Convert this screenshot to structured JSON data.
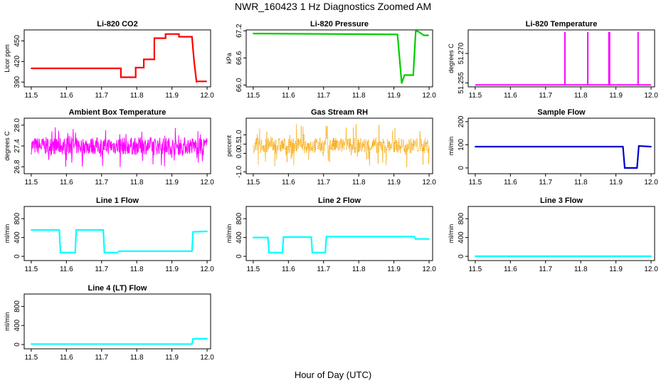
{
  "figure": {
    "title": "NWR_160423  1 Hz Diagnostics Zoomed AM",
    "xlabel": "Hour of Day (UTC)"
  },
  "chart_data": [
    {
      "type": "line",
      "title": "Li-820 CO2",
      "ylabel": "Licor ppm",
      "color": "#ff0000",
      "xlim": [
        11.48,
        12.01
      ],
      "ylim": [
        383,
        466
      ],
      "xticks": [
        "11.5",
        "11.6",
        "11.7",
        "11.8",
        "11.9",
        "12.0"
      ],
      "yticks": [
        390,
        420,
        450
      ],
      "series": [
        {
          "x": [
            11.5,
            11.755,
            11.755,
            11.797,
            11.797,
            11.82,
            11.82,
            11.85,
            11.85,
            11.882,
            11.882,
            11.92,
            11.92,
            11.957,
            11.963,
            11.97,
            11.97,
            11.998
          ],
          "y": [
            410,
            410,
            397,
            397,
            411,
            411,
            423,
            423,
            454,
            454,
            460,
            460,
            456,
            456,
            420,
            390,
            391,
            391
          ]
        }
      ]
    },
    {
      "type": "line",
      "title": "Li-820 Pressure",
      "ylabel": "kPa",
      "color": "#00cc00",
      "xlim": [
        11.48,
        12.01
      ],
      "ylim": [
        65.96,
        67.22
      ],
      "xticks": [
        "11.5",
        "11.6",
        "11.7",
        "11.8",
        "11.9",
        "12.0"
      ],
      "yticks": [
        66.0,
        66.6,
        67.2
      ],
      "series": [
        {
          "x": [
            11.5,
            11.91,
            11.916,
            11.922,
            11.93,
            11.955,
            11.962,
            11.97,
            11.985,
            11.998
          ],
          "y": [
            67.14,
            67.12,
            66.6,
            66.04,
            66.22,
            66.22,
            67.2,
            67.18,
            67.1,
            67.1
          ]
        }
      ]
    },
    {
      "type": "line",
      "title": "Li-820 Temperature",
      "ylabel": "degrees C",
      "color": "#ff00ff",
      "xlim": [
        11.48,
        12.01
      ],
      "ylim": [
        51.253,
        51.282
      ],
      "xticks": [
        "11.5",
        "11.6",
        "11.7",
        "11.8",
        "11.9",
        "12.0"
      ],
      "yticks": [
        51.255,
        51.27
      ],
      "baseline": 51.254,
      "spikes": [
        11.755,
        11.82,
        11.88,
        11.882,
        11.963
      ]
    },
    {
      "type": "line",
      "title": "Ambient Box Temperature",
      "ylabel": "degrees C",
      "color": "#ff00ff",
      "xlim": [
        11.48,
        12.01
      ],
      "ylim": [
        26.6,
        28.2
      ],
      "xticks": [
        "11.5",
        "11.6",
        "11.7",
        "11.8",
        "11.9",
        "12.0"
      ],
      "yticks": [
        26.8,
        27.4,
        28.0
      ],
      "noise": {
        "mean": 27.4,
        "low": 27.15,
        "high": 27.65,
        "minDip": 26.75,
        "maxSpike": 27.95
      }
    },
    {
      "type": "scatter",
      "title": "Gas Stream RH",
      "ylabel": "percent",
      "color": "#ffaa00",
      "xlim": [
        11.48,
        12.01
      ],
      "ylim": [
        -1.1,
        1.9
      ],
      "xticks": [
        "11.5",
        "11.6",
        "11.7",
        "11.8",
        "11.9",
        "12.0"
      ],
      "yticks": [
        -1.0,
        0.0,
        0.5,
        1.0
      ],
      "noise": {
        "mean": 0.4,
        "low": 0.0,
        "high": 0.85,
        "minDip": -0.8,
        "maxSpike": 1.6
      }
    },
    {
      "type": "line",
      "title": "Sample Flow",
      "ylabel": "ml/min",
      "color": "#0000cc",
      "xlim": [
        11.48,
        12.01
      ],
      "ylim": [
        -25,
        215
      ],
      "xticks": [
        "11.5",
        "11.6",
        "11.7",
        "11.8",
        "11.9",
        "12.0"
      ],
      "yticks": [
        0,
        100,
        200
      ],
      "series": [
        {
          "x": [
            11.5,
            11.92,
            11.925,
            11.96,
            11.965,
            12.0
          ],
          "y": [
            92,
            92,
            0,
            0,
            95,
            92
          ]
        }
      ]
    },
    {
      "type": "line",
      "title": "Line 1 Flow",
      "ylabel": "ml/min",
      "color": "#00ffff",
      "xlim": [
        11.48,
        12.01
      ],
      "ylim": [
        -90,
        1060
      ],
      "xticks": [
        "11.5",
        "11.6",
        "11.7",
        "11.8",
        "11.9",
        "12.0"
      ],
      "yticks": [
        0,
        400,
        800
      ],
      "series": [
        {
          "x": [
            11.5,
            11.58,
            11.583,
            11.625,
            11.628,
            11.705,
            11.708,
            11.745,
            11.75,
            11.957,
            11.96,
            12.0
          ],
          "y": [
            560,
            560,
            80,
            80,
            560,
            560,
            80,
            80,
            110,
            110,
            520,
            530
          ]
        }
      ]
    },
    {
      "type": "line",
      "title": "Line 2 Flow",
      "ylabel": "ml/min",
      "color": "#00ffff",
      "xlim": [
        11.48,
        12.01
      ],
      "ylim": [
        -90,
        1060
      ],
      "xticks": [
        "11.5",
        "11.6",
        "11.7",
        "11.8",
        "11.9",
        "12.0"
      ],
      "yticks": [
        0,
        400,
        800
      ],
      "series": [
        {
          "x": [
            11.5,
            11.542,
            11.545,
            11.583,
            11.586,
            11.665,
            11.668,
            11.705,
            11.708,
            11.958,
            11.961,
            12.0
          ],
          "y": [
            400,
            400,
            80,
            80,
            410,
            410,
            80,
            80,
            420,
            420,
            370,
            370
          ]
        }
      ]
    },
    {
      "type": "line",
      "title": "Line 3 Flow",
      "ylabel": "ml/min",
      "color": "#00ffff",
      "xlim": [
        11.48,
        12.01
      ],
      "ylim": [
        -90,
        1060
      ],
      "xticks": [
        "11.5",
        "11.6",
        "11.7",
        "11.8",
        "11.9",
        "12.0"
      ],
      "yticks": [
        0,
        400,
        800
      ],
      "series": [
        {
          "x": [
            11.5,
            12.0
          ],
          "y": [
            2,
            2
          ]
        }
      ]
    },
    {
      "type": "line",
      "title": "Line 4 (LT) Flow",
      "ylabel": "ml/min",
      "color": "#00ffff",
      "xlim": [
        11.48,
        12.01
      ],
      "ylim": [
        -90,
        1060
      ],
      "xticks": [
        "11.5",
        "11.6",
        "11.7",
        "11.8",
        "11.9",
        "12.0"
      ],
      "yticks": [
        0,
        400,
        800
      ],
      "series": [
        {
          "x": [
            11.5,
            11.957,
            11.96,
            12.0
          ],
          "y": [
            10,
            10,
            120,
            120
          ]
        }
      ]
    }
  ]
}
